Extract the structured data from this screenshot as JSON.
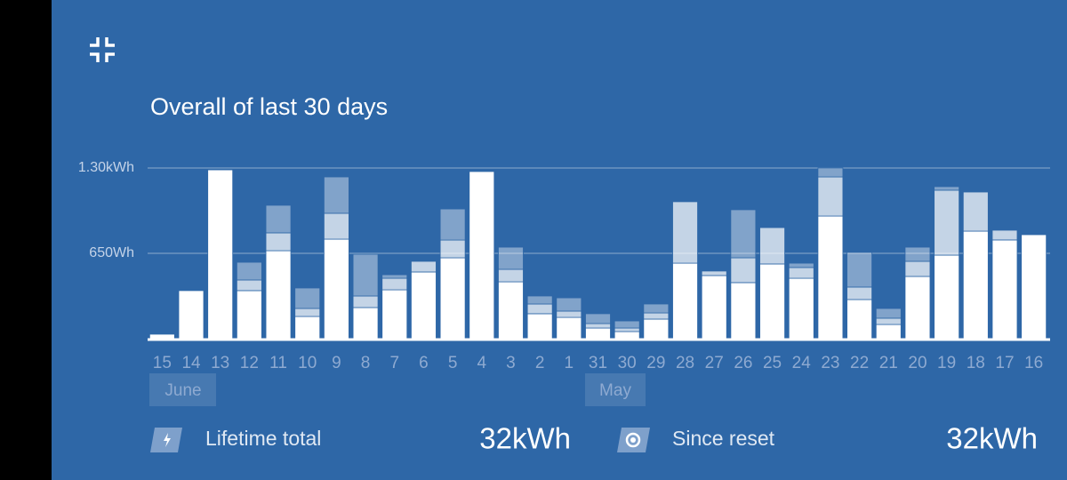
{
  "chart_data": {
    "type": "stacked_bar",
    "title": "Overall of last 30 days",
    "categories": [
      "15",
      "14",
      "13",
      "12",
      "11",
      "10",
      "9",
      "8",
      "7",
      "6",
      "5",
      "4",
      "3",
      "2",
      "1",
      "31",
      "30",
      "29",
      "28",
      "27",
      "26",
      "25",
      "24",
      "23",
      "22",
      "21",
      "20",
      "19",
      "18",
      "17",
      "16"
    ],
    "series": [
      {
        "color": "#ffffff",
        "values": [
          34,
          366,
          1286,
          366,
          670,
          169,
          758,
          237,
          372,
          508,
          616,
          1273,
          433,
          190,
          162,
          81,
          54,
          149,
          575,
          481,
          427,
          569,
          460,
          934,
          298,
          108,
          474,
          636,
          819,
          752,
          792
        ]
      },
      {
        "color": "rgba(255,255,255,0.72)",
        "values": [
          0,
          0,
          0,
          81,
          136,
          61,
          197,
          88,
          88,
          81,
          135,
          0,
          95,
          74,
          48,
          34,
          27,
          47,
          468,
          34,
          189,
          277,
          82,
          298,
          95,
          48,
          115,
          495,
          298,
          74,
          0
        ]
      },
      {
        "color": "rgba(255,255,255,0.4)",
        "values": [
          0,
          0,
          0,
          135,
          210,
          156,
          277,
          318,
          27,
          0,
          237,
          0,
          169,
          61,
          101,
          75,
          54,
          68,
          0,
          0,
          366,
          0,
          33,
          68,
          264,
          74,
          108,
          27,
          0,
          0,
          0
        ]
      }
    ],
    "ylim": [
      0,
      1300
    ],
    "yticks": [
      {
        "value": 650,
        "label": "650Wh"
      },
      {
        "value": 1300,
        "label": "1.30kWh"
      }
    ],
    "grid": true
  },
  "months": [
    "June",
    "May"
  ],
  "stats": [
    {
      "label": "Lifetime total",
      "value": "32kWh"
    },
    {
      "label": "Since reset",
      "value": "32kWh"
    }
  ]
}
